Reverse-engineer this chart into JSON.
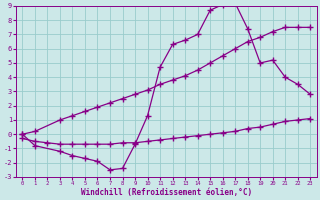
{
  "xlabel": "Windchill (Refroidissement éolien,°C)",
  "bg_color": "#cce8e8",
  "grid_color": "#99cccc",
  "line_color": "#880088",
  "xlim": [
    -0.5,
    23.5
  ],
  "ylim": [
    -3,
    9
  ],
  "xticks": [
    0,
    1,
    2,
    3,
    4,
    5,
    6,
    7,
    8,
    9,
    10,
    11,
    12,
    13,
    14,
    15,
    16,
    17,
    18,
    19,
    20,
    21,
    22,
    23
  ],
  "yticks": [
    -3,
    -2,
    -1,
    0,
    1,
    2,
    3,
    4,
    5,
    6,
    7,
    8,
    9
  ],
  "curve1_x": [
    0,
    1,
    3,
    4,
    5,
    6,
    7,
    8,
    9,
    10,
    11,
    12,
    13,
    14,
    15,
    16,
    17,
    18,
    19,
    20,
    21,
    22,
    23
  ],
  "curve1_y": [
    0,
    0.2,
    1.0,
    1.3,
    1.6,
    1.9,
    2.2,
    2.5,
    2.8,
    3.1,
    3.5,
    3.8,
    4.1,
    4.5,
    5.0,
    5.5,
    6.0,
    6.5,
    6.8,
    7.2,
    7.5,
    7.5,
    7.5
  ],
  "curve2_x": [
    0,
    1,
    3,
    4,
    5,
    6,
    7,
    8,
    9,
    10,
    11,
    12,
    13,
    14,
    15,
    16,
    17,
    18,
    19,
    20,
    21,
    22,
    23
  ],
  "curve2_y": [
    0,
    -0.8,
    -1.2,
    -1.5,
    -1.7,
    -1.9,
    -2.5,
    -2.4,
    -0.7,
    1.3,
    4.7,
    6.3,
    6.6,
    7.0,
    8.7,
    9.1,
    9.2,
    7.4,
    5.0,
    5.2,
    4.0,
    3.5,
    2.8
  ],
  "curve3_x": [
    0,
    1,
    2,
    3,
    4,
    5,
    6,
    7,
    8,
    9,
    10,
    11,
    12,
    13,
    14,
    15,
    16,
    17,
    18,
    19,
    20,
    21,
    22,
    23
  ],
  "curve3_y": [
    -0.3,
    -0.5,
    -0.6,
    -0.7,
    -0.7,
    -0.7,
    -0.7,
    -0.7,
    -0.6,
    -0.6,
    -0.5,
    -0.4,
    -0.3,
    -0.2,
    -0.1,
    0.0,
    0.1,
    0.2,
    0.4,
    0.5,
    0.7,
    0.9,
    1.0,
    1.1
  ],
  "marker": "+",
  "markersize": 4,
  "linewidth": 0.9
}
